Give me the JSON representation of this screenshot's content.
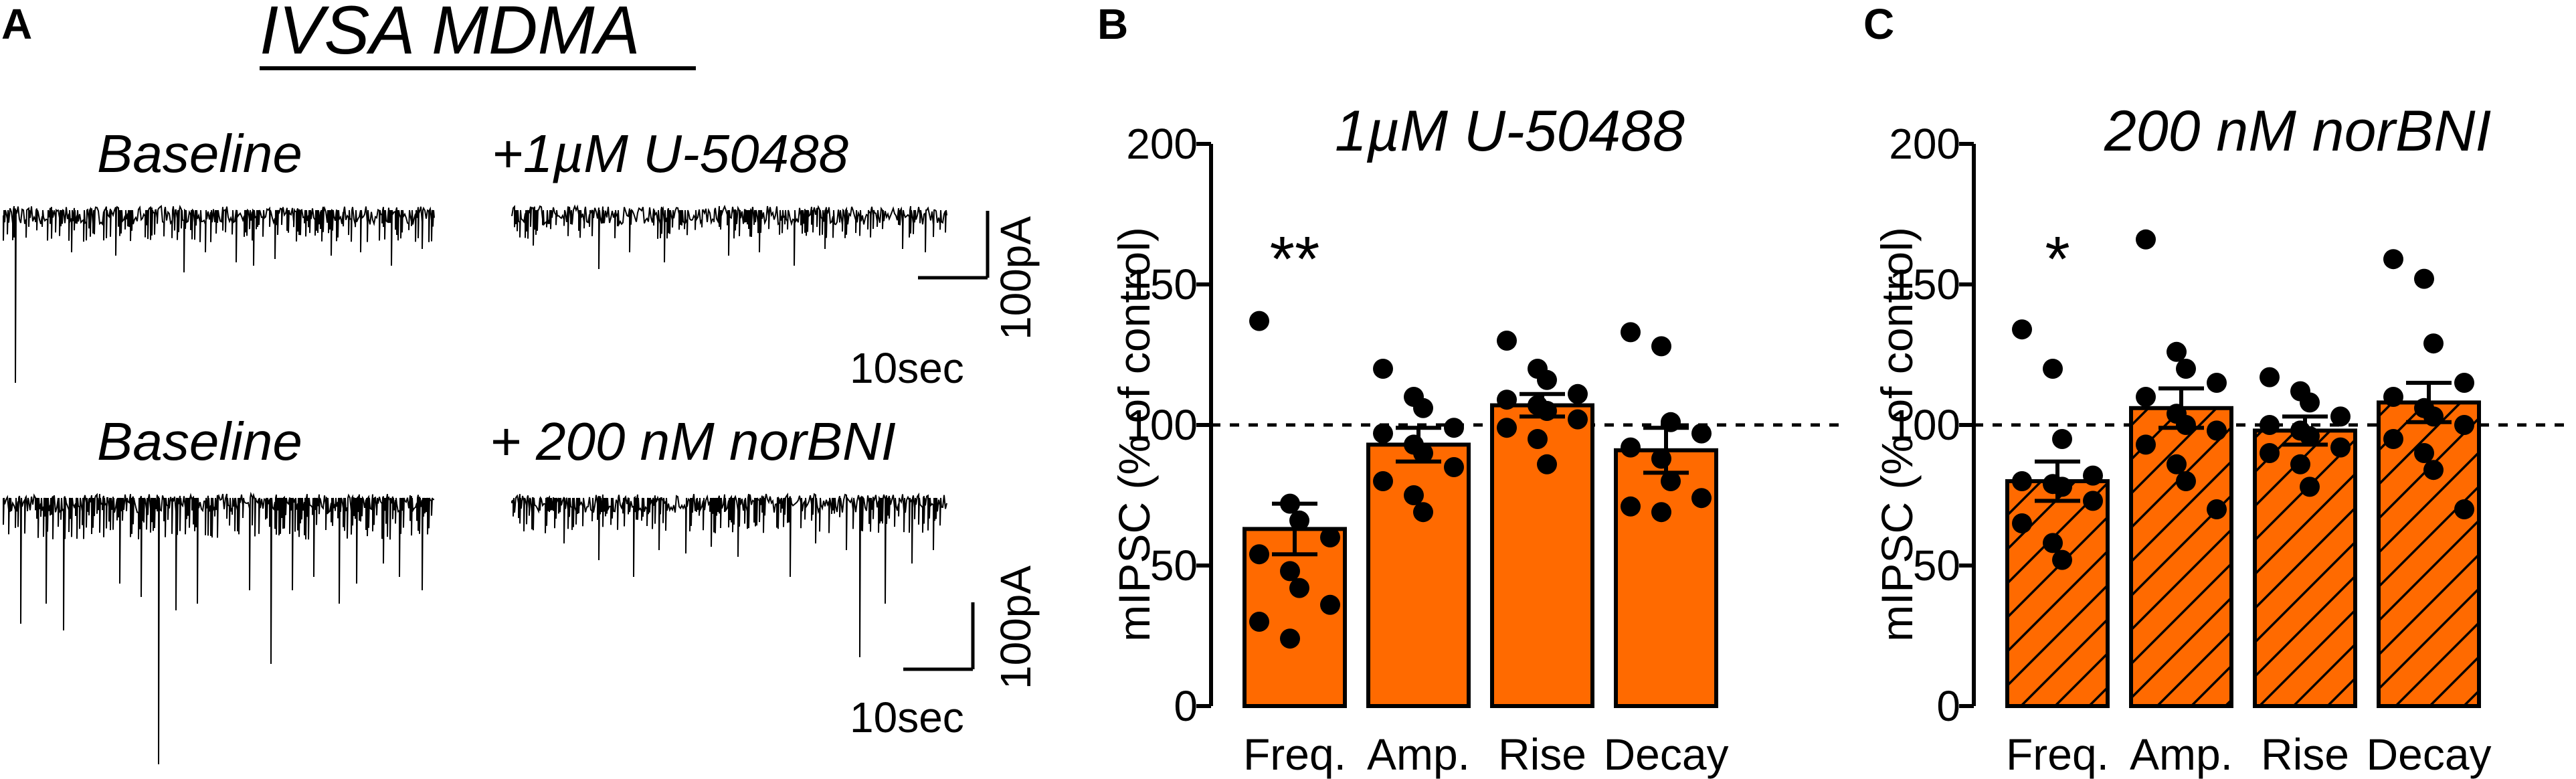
{
  "figure": {
    "panel_a": {
      "letter": "A",
      "title": "IVSA MDMA",
      "row1": {
        "left": "Baseline",
        "right": "+1µM U-50488"
      },
      "row2": {
        "left": "Baseline",
        "right": "+ 200 nM norBNI"
      },
      "scale_current": "100pA",
      "scale_time": "10sec"
    },
    "panel_b": {
      "letter": "B"
    },
    "panel_c": {
      "letter": "C"
    }
  },
  "colors": {
    "bar": "#ff6a00",
    "ink": "#000000",
    "trace": "#000000"
  },
  "chart_data": [
    {
      "type": "bar",
      "panel": "B",
      "title": "1µM U-50488",
      "ylabel": "mIPSC (% of control)",
      "xlabel": "",
      "ylim": [
        0,
        200
      ],
      "yticks": [
        "0",
        "50",
        "100",
        "150",
        "200"
      ],
      "reference_line": 100,
      "hatched": false,
      "categories": [
        "Freq.",
        "Amp.",
        "Rise",
        "Decay"
      ],
      "values": [
        63,
        93,
        107,
        91
      ],
      "sem": [
        9,
        6,
        4,
        8
      ],
      "significance": [
        "**",
        "",
        "",
        ""
      ],
      "points": [
        [
          137,
          72,
          66,
          60,
          54,
          48,
          42,
          36,
          30,
          24
        ],
        [
          120,
          110,
          106,
          99,
          97,
          93,
          90,
          85,
          80,
          75,
          69
        ],
        [
          130,
          120,
          116,
          111,
          109,
          107,
          105,
          102,
          99,
          95,
          86
        ],
        [
          133,
          128,
          101,
          97,
          92,
          88,
          80,
          74,
          71,
          69
        ]
      ]
    },
    {
      "type": "bar",
      "panel": "C",
      "title": "200 nM norBNI",
      "ylabel": "mIPSC (% of control)",
      "xlabel": "",
      "ylim": [
        0,
        200
      ],
      "yticks": [
        "0",
        "50",
        "100",
        "150",
        "200"
      ],
      "reference_line": 100,
      "hatched": true,
      "categories": [
        "Freq.",
        "Amp.",
        "Rise",
        "Decay"
      ],
      "values": [
        80,
        106,
        98,
        108
      ],
      "sem": [
        7,
        7,
        5,
        7
      ],
      "significance": [
        "*",
        "",
        "",
        ""
      ],
      "points": [
        [
          134,
          120,
          95,
          82,
          80,
          79,
          78,
          73,
          65,
          58,
          52
        ],
        [
          166,
          126,
          120,
          115,
          110,
          104,
          100,
          98,
          93,
          86,
          80,
          70
        ],
        [
          117,
          112,
          108,
          103,
          100,
          98,
          96,
          92,
          90,
          86,
          78
        ],
        [
          159,
          152,
          129,
          115,
          110,
          106,
          103,
          100,
          95,
          90,
          84,
          70
        ]
      ]
    }
  ]
}
